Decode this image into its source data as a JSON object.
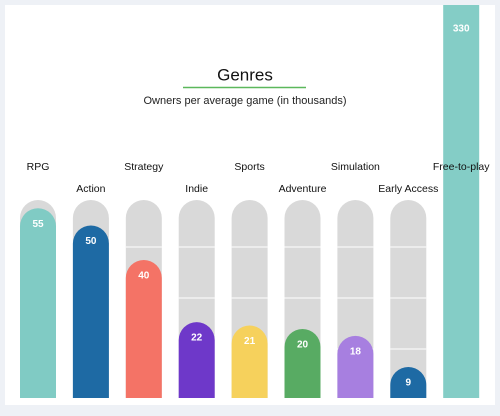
{
  "chart_data": {
    "type": "bar",
    "title": "Genres",
    "subtitle": "Owners per average game (in thousands)",
    "categories": [
      "RPG",
      "Action",
      "Strategy",
      "Indie",
      "Sports",
      "Adventure",
      "Simulation",
      "Early Access",
      "Free-to-play"
    ],
    "values": [
      55,
      50,
      40,
      22,
      21,
      20,
      18,
      9,
      330
    ],
    "colors": [
      "#80cbc4",
      "#1e6aa4",
      "#f47366",
      "#6e38c9",
      "#f6d15c",
      "#58ab63",
      "#a77fe0",
      "#1e6aa4",
      "#84cdc6"
    ]
  }
}
